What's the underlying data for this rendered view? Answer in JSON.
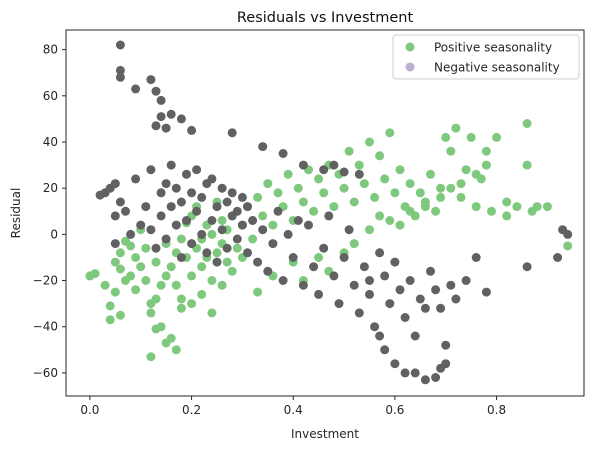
{
  "chart_data": {
    "type": "scatter",
    "title": "Residuals vs Investment",
    "xlabel": "Investment",
    "ylabel": "Residual",
    "xlim": [
      -0.047,
      0.972
    ],
    "ylim": [
      -70,
      88.5
    ],
    "xticks": [
      0.0,
      0.2,
      0.4,
      0.6,
      0.8
    ],
    "xtick_labels": [
      "0.0",
      "0.2",
      "0.4",
      "0.6",
      "0.8"
    ],
    "yticks": [
      -60,
      -40,
      -20,
      0,
      20,
      40,
      60,
      80
    ],
    "ytick_labels": [
      "−60",
      "−40",
      "−20",
      "0",
      "20",
      "40",
      "60",
      "80"
    ],
    "grid": false,
    "legend_position": "top-right",
    "series": [
      {
        "name": "Positive seasonality",
        "color": "#7fc97f",
        "x": [
          0.0,
          0.01,
          0.03,
          0.04,
          0.05,
          0.05,
          0.06,
          0.06,
          0.07,
          0.07,
          0.08,
          0.08,
          0.09,
          0.09,
          0.1,
          0.1,
          0.11,
          0.11,
          0.12,
          0.12,
          0.13,
          0.13,
          0.14,
          0.14,
          0.15,
          0.15,
          0.16,
          0.16,
          0.17,
          0.17,
          0.18,
          0.18,
          0.19,
          0.19,
          0.2,
          0.2,
          0.21,
          0.21,
          0.22,
          0.22,
          0.23,
          0.23,
          0.24,
          0.24,
          0.25,
          0.25,
          0.26,
          0.26,
          0.27,
          0.27,
          0.28,
          0.28,
          0.29,
          0.3,
          0.3,
          0.31,
          0.32,
          0.33,
          0.34,
          0.35,
          0.36,
          0.37,
          0.38,
          0.39,
          0.4,
          0.41,
          0.42,
          0.43,
          0.44,
          0.45,
          0.46,
          0.47,
          0.48,
          0.49,
          0.5,
          0.51,
          0.52,
          0.53,
          0.54,
          0.55,
          0.56,
          0.57,
          0.58,
          0.59,
          0.6,
          0.61,
          0.62,
          0.63,
          0.64,
          0.65,
          0.66,
          0.67,
          0.68,
          0.69,
          0.7,
          0.71,
          0.72,
          0.73,
          0.74,
          0.75,
          0.76,
          0.77,
          0.78,
          0.79,
          0.8,
          0.82,
          0.84,
          0.86,
          0.87,
          0.88,
          0.9,
          0.94,
          0.04,
          0.06,
          0.12,
          0.13,
          0.15,
          0.17,
          0.18,
          0.2,
          0.22,
          0.24,
          0.26,
          0.33,
          0.36,
          0.4,
          0.42,
          0.45,
          0.47,
          0.5,
          0.52,
          0.55,
          0.57,
          0.59,
          0.61,
          0.63,
          0.66,
          0.69,
          0.71,
          0.73,
          0.76,
          0.78,
          0.82,
          0.86
        ],
        "y": [
          -18,
          -17,
          -22,
          -31,
          -25,
          -12,
          -15,
          -8,
          -20,
          -3,
          -18,
          -5,
          -24,
          -10,
          -14,
          2,
          -20,
          -6,
          -30,
          -53,
          -28,
          -12,
          -40,
          -22,
          -18,
          -4,
          -45,
          -14,
          -22,
          -8,
          -32,
          -2,
          -10,
          5,
          -18,
          8,
          -6,
          12,
          -14,
          -2,
          -10,
          4,
          -20,
          0,
          -8,
          14,
          -4,
          6,
          -12,
          2,
          -16,
          8,
          -6,
          4,
          -10,
          12,
          -2,
          16,
          8,
          22,
          4,
          18,
          12,
          26,
          6,
          20,
          14,
          28,
          10,
          24,
          18,
          30,
          12,
          26,
          20,
          36,
          14,
          30,
          22,
          40,
          16,
          34,
          24,
          44,
          18,
          28,
          12,
          22,
          8,
          18,
          14,
          26,
          10,
          20,
          42,
          36,
          46,
          16,
          28,
          42,
          12,
          24,
          36,
          10,
          42,
          8,
          12,
          48,
          10,
          12,
          12,
          -5,
          -37,
          -35,
          -34,
          -41,
          -47,
          -50,
          -28,
          -30,
          -26,
          -34,
          -22,
          -25,
          -18,
          -12,
          -20,
          -10,
          -16,
          -8,
          -4,
          2,
          8,
          6,
          4,
          10,
          12,
          16,
          20,
          22,
          26,
          30,
          14,
          30
        ]
      },
      {
        "name": "Negative seasonality",
        "color": "#616161",
        "x": [
          0.02,
          0.03,
          0.04,
          0.05,
          0.05,
          0.05,
          0.06,
          0.07,
          0.08,
          0.09,
          0.1,
          0.11,
          0.12,
          0.12,
          0.13,
          0.14,
          0.14,
          0.15,
          0.15,
          0.16,
          0.16,
          0.17,
          0.17,
          0.18,
          0.18,
          0.19,
          0.19,
          0.2,
          0.2,
          0.21,
          0.21,
          0.22,
          0.22,
          0.23,
          0.23,
          0.24,
          0.24,
          0.25,
          0.25,
          0.26,
          0.26,
          0.27,
          0.27,
          0.28,
          0.28,
          0.29,
          0.29,
          0.3,
          0.3,
          0.31,
          0.31,
          0.32,
          0.33,
          0.34,
          0.35,
          0.36,
          0.37,
          0.38,
          0.39,
          0.4,
          0.41,
          0.42,
          0.43,
          0.44,
          0.45,
          0.46,
          0.47,
          0.48,
          0.49,
          0.5,
          0.51,
          0.52,
          0.53,
          0.54,
          0.55,
          0.56,
          0.57,
          0.58,
          0.59,
          0.6,
          0.61,
          0.62,
          0.63,
          0.64,
          0.65,
          0.66,
          0.67,
          0.68,
          0.69,
          0.7,
          0.71,
          0.72,
          0.74,
          0.76,
          0.78,
          0.86,
          0.92,
          0.93,
          0.94,
          0.06,
          0.06,
          0.06,
          0.09,
          0.12,
          0.13,
          0.14,
          0.14,
          0.13,
          0.15,
          0.16,
          0.18,
          0.2,
          0.28,
          0.34,
          0.38,
          0.42,
          0.46,
          0.48,
          0.5,
          0.53,
          0.55,
          0.57,
          0.58,
          0.6,
          0.62,
          0.64,
          0.66,
          0.68,
          0.69,
          0.7
        ],
        "y": [
          17,
          18,
          20,
          8,
          -4,
          22,
          14,
          10,
          0,
          24,
          4,
          12,
          2,
          28,
          -6,
          18,
          8,
          22,
          -2,
          12,
          30,
          4,
          20,
          -10,
          14,
          26,
          6,
          18,
          -4,
          10,
          28,
          0,
          16,
          -8,
          22,
          6,
          24,
          -12,
          12,
          2,
          20,
          -6,
          14,
          8,
          18,
          -2,
          10,
          16,
          4,
          12,
          -8,
          6,
          -12,
          2,
          -16,
          -4,
          10,
          -20,
          0,
          -10,
          6,
          -22,
          4,
          -14,
          -26,
          -6,
          8,
          -18,
          -30,
          -10,
          2,
          -22,
          -34,
          -14,
          -26,
          -40,
          -8,
          -18,
          -30,
          -12,
          -24,
          -36,
          -20,
          -44,
          -28,
          -32,
          -16,
          -24,
          -32,
          -48,
          -22,
          -28,
          -20,
          -10,
          -25,
          -14,
          -10,
          2,
          0,
          82,
          71,
          68,
          63,
          67,
          62,
          58,
          51,
          47,
          46,
          52,
          50,
          45,
          44,
          38,
          35,
          30,
          28,
          30,
          27,
          26,
          -20,
          -44,
          -50,
          -56,
          -60,
          -60,
          -63,
          -62,
          -58,
          -56
        ]
      }
    ]
  }
}
